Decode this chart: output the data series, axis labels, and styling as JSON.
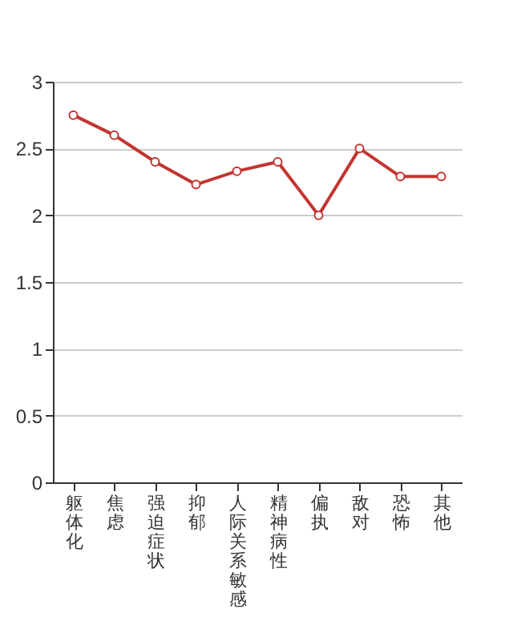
{
  "chart_data": {
    "type": "line",
    "categories": [
      "躯体化",
      "焦虑",
      "强迫症状",
      "抑郁",
      "人际关系敏感",
      "精神病性",
      "偏执",
      "敌对",
      "恐怖",
      "其他"
    ],
    "series": [
      {
        "color": "#c23531",
        "values": [
          2.75,
          2.6,
          2.4,
          2.23,
          2.33,
          2.4,
          2.0,
          2.5,
          2.29,
          2.29
        ]
      }
    ],
    "ylim": [
      0,
      3
    ],
    "yticks": [
      0,
      0.5,
      1,
      1.5,
      2,
      2.5,
      3
    ],
    "grid": "y",
    "marker": "circle",
    "legend": false
  }
}
